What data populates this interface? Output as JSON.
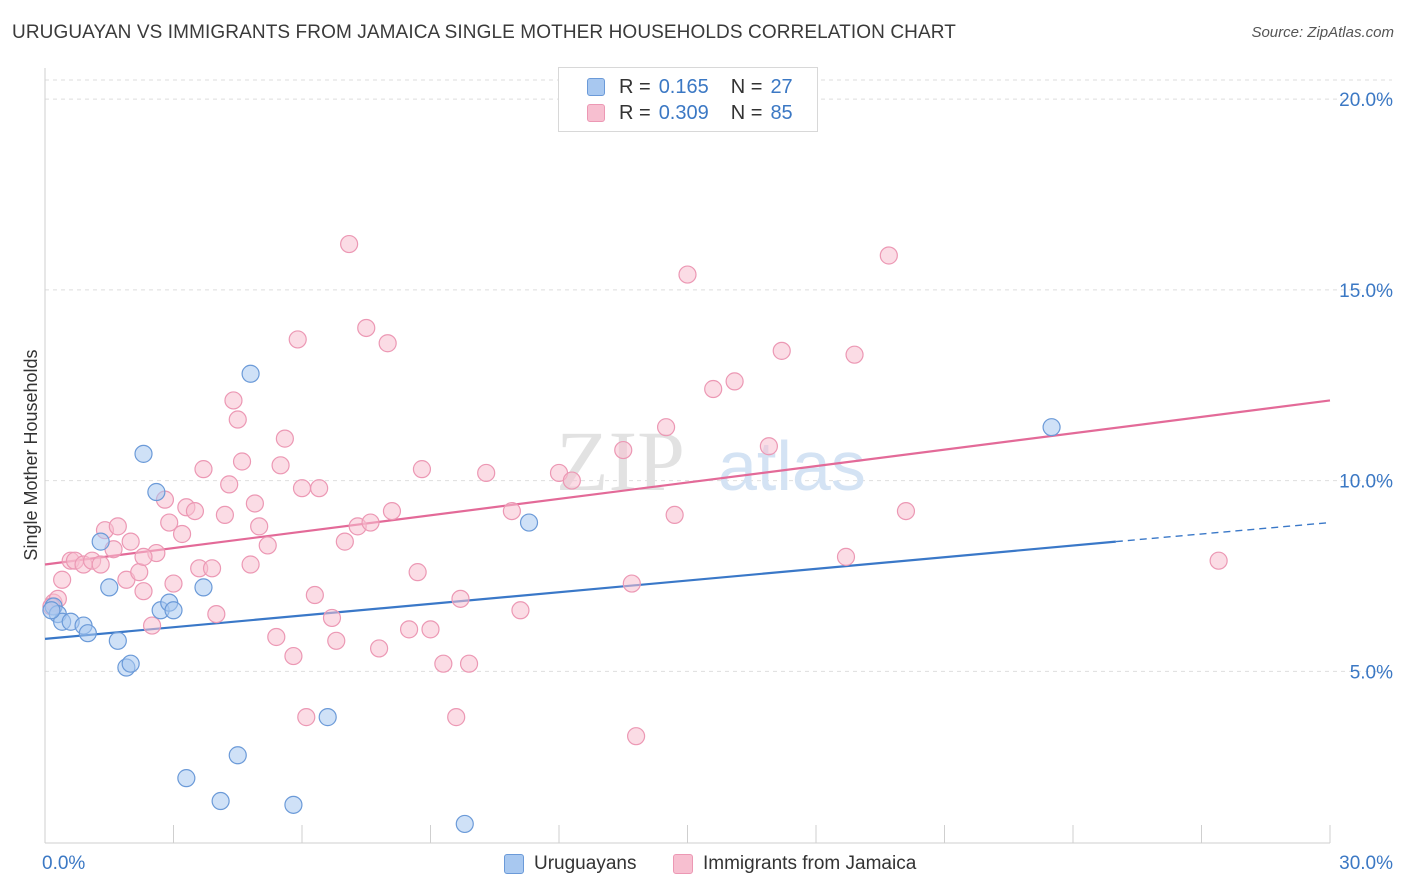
{
  "title": "URUGUAYAN VS IMMIGRANTS FROM JAMAICA SINGLE MOTHER HOUSEHOLDS CORRELATION CHART",
  "source": "Source: ZipAtlas.com",
  "watermark": {
    "zip": "ZIP",
    "atlas": "atlas"
  },
  "legend": {
    "rows": [
      {
        "r_label": "R =",
        "r_value": "0.165",
        "n_label": "N =",
        "n_value": "27"
      },
      {
        "r_label": "R =",
        "r_value": "0.309",
        "n_label": "N =",
        "n_value": "85"
      }
    ]
  },
  "colors": {
    "uruguayan_fill": "#a8c8f0",
    "uruguayan_stroke": "#6b9ad8",
    "uruguayan_line": "#3a78c8",
    "jamaica_fill": "#f7bfd0",
    "jamaica_stroke": "#ec98b4",
    "jamaica_line": "#e36a98",
    "tick_label": "#3b78c4",
    "grid": "#dedede"
  },
  "chart_data": {
    "type": "scatter",
    "ylabel": "Single Mother Households",
    "xlim": [
      0,
      30
    ],
    "ylim": [
      0.5,
      20.5
    ],
    "x_tick_labels": [
      {
        "value": 0,
        "label": "0.0%"
      },
      {
        "value": 30,
        "label": "30.0%"
      }
    ],
    "y_tick_labels": [
      {
        "value": 5,
        "label": "5.0%"
      },
      {
        "value": 10,
        "label": "10.0%"
      },
      {
        "value": 15,
        "label": "15.0%"
      },
      {
        "value": 20,
        "label": "20.0%"
      }
    ],
    "grid": true,
    "legend_position": "top-center",
    "series": [
      {
        "name": "Uruguayans",
        "trend": {
          "x0": 0,
          "y0": 5.85,
          "x1": 25,
          "y1": 8.4,
          "dash_to_x": 30,
          "dash_to_y": 8.9
        },
        "points": [
          [
            0.2,
            6.7
          ],
          [
            0.3,
            6.5
          ],
          [
            0.4,
            6.3
          ],
          [
            0.6,
            6.3
          ],
          [
            0.9,
            6.2
          ],
          [
            1.0,
            6.0
          ],
          [
            1.3,
            8.4
          ],
          [
            1.5,
            7.2
          ],
          [
            1.7,
            5.8
          ],
          [
            1.9,
            5.1
          ],
          [
            2.0,
            5.2
          ],
          [
            2.3,
            10.7
          ],
          [
            2.6,
            9.7
          ],
          [
            2.7,
            6.6
          ],
          [
            2.9,
            6.8
          ],
          [
            3.0,
            6.6
          ],
          [
            3.3,
            2.2
          ],
          [
            3.7,
            7.2
          ],
          [
            4.1,
            1.6
          ],
          [
            4.5,
            2.8
          ],
          [
            4.8,
            12.8
          ],
          [
            5.8,
            1.5
          ],
          [
            6.6,
            3.8
          ],
          [
            9.8,
            1.0
          ],
          [
            11.3,
            8.9
          ],
          [
            23.5,
            11.4
          ],
          [
            0.15,
            6.6
          ]
        ]
      },
      {
        "name": "Immigrants from Jamaica",
        "trend": {
          "x0": 0,
          "y0": 7.8,
          "x1": 30,
          "y1": 12.1
        },
        "points": [
          [
            0.2,
            6.8
          ],
          [
            0.3,
            6.9
          ],
          [
            0.4,
            7.4
          ],
          [
            0.6,
            7.9
          ],
          [
            0.7,
            7.9
          ],
          [
            0.9,
            7.8
          ],
          [
            1.1,
            7.9
          ],
          [
            1.3,
            7.8
          ],
          [
            1.4,
            8.7
          ],
          [
            1.6,
            8.2
          ],
          [
            1.7,
            8.8
          ],
          [
            1.9,
            7.4
          ],
          [
            2.0,
            8.4
          ],
          [
            2.2,
            7.6
          ],
          [
            2.3,
            7.1
          ],
          [
            2.5,
            6.2
          ],
          [
            2.6,
            8.1
          ],
          [
            2.8,
            9.5
          ],
          [
            2.9,
            8.9
          ],
          [
            3.0,
            7.3
          ],
          [
            3.2,
            8.6
          ],
          [
            3.3,
            9.3
          ],
          [
            3.5,
            9.2
          ],
          [
            3.6,
            7.7
          ],
          [
            3.7,
            10.3
          ],
          [
            3.9,
            7.7
          ],
          [
            4.0,
            6.5
          ],
          [
            4.2,
            9.1
          ],
          [
            4.3,
            9.9
          ],
          [
            4.4,
            12.1
          ],
          [
            4.5,
            11.6
          ],
          [
            4.6,
            10.5
          ],
          [
            4.8,
            7.8
          ],
          [
            4.9,
            9.4
          ],
          [
            5.0,
            8.8
          ],
          [
            5.2,
            8.3
          ],
          [
            5.4,
            5.9
          ],
          [
            5.5,
            10.4
          ],
          [
            5.6,
            11.1
          ],
          [
            5.8,
            5.4
          ],
          [
            5.9,
            13.7
          ],
          [
            6.0,
            9.8
          ],
          [
            6.1,
            3.8
          ],
          [
            6.3,
            7.0
          ],
          [
            6.4,
            9.8
          ],
          [
            6.7,
            6.4
          ],
          [
            6.8,
            5.8
          ],
          [
            7.0,
            8.4
          ],
          [
            7.1,
            16.2
          ],
          [
            7.3,
            8.8
          ],
          [
            7.5,
            14.0
          ],
          [
            7.6,
            8.9
          ],
          [
            7.8,
            5.6
          ],
          [
            8.0,
            13.6
          ],
          [
            8.1,
            9.2
          ],
          [
            8.5,
            6.1
          ],
          [
            8.7,
            7.6
          ],
          [
            8.8,
            10.3
          ],
          [
            9.0,
            6.1
          ],
          [
            9.3,
            5.2
          ],
          [
            9.6,
            3.8
          ],
          [
            9.7,
            6.9
          ],
          [
            9.9,
            5.2
          ],
          [
            10.3,
            10.2
          ],
          [
            10.9,
            9.2
          ],
          [
            11.1,
            6.6
          ],
          [
            12.0,
            10.2
          ],
          [
            12.3,
            10.0
          ],
          [
            13.5,
            10.8
          ],
          [
            13.7,
            7.3
          ],
          [
            13.8,
            3.3
          ],
          [
            14.5,
            11.4
          ],
          [
            14.7,
            9.1
          ],
          [
            15.0,
            15.4
          ],
          [
            15.6,
            12.4
          ],
          [
            16.1,
            12.6
          ],
          [
            16.9,
            10.9
          ],
          [
            17.2,
            13.4
          ],
          [
            18.9,
            13.3
          ],
          [
            18.7,
            8.0
          ],
          [
            19.7,
            15.9
          ],
          [
            20.1,
            9.2
          ],
          [
            27.4,
            7.9
          ],
          [
            0.15,
            6.7
          ],
          [
            2.3,
            8.0
          ]
        ]
      }
    ]
  }
}
